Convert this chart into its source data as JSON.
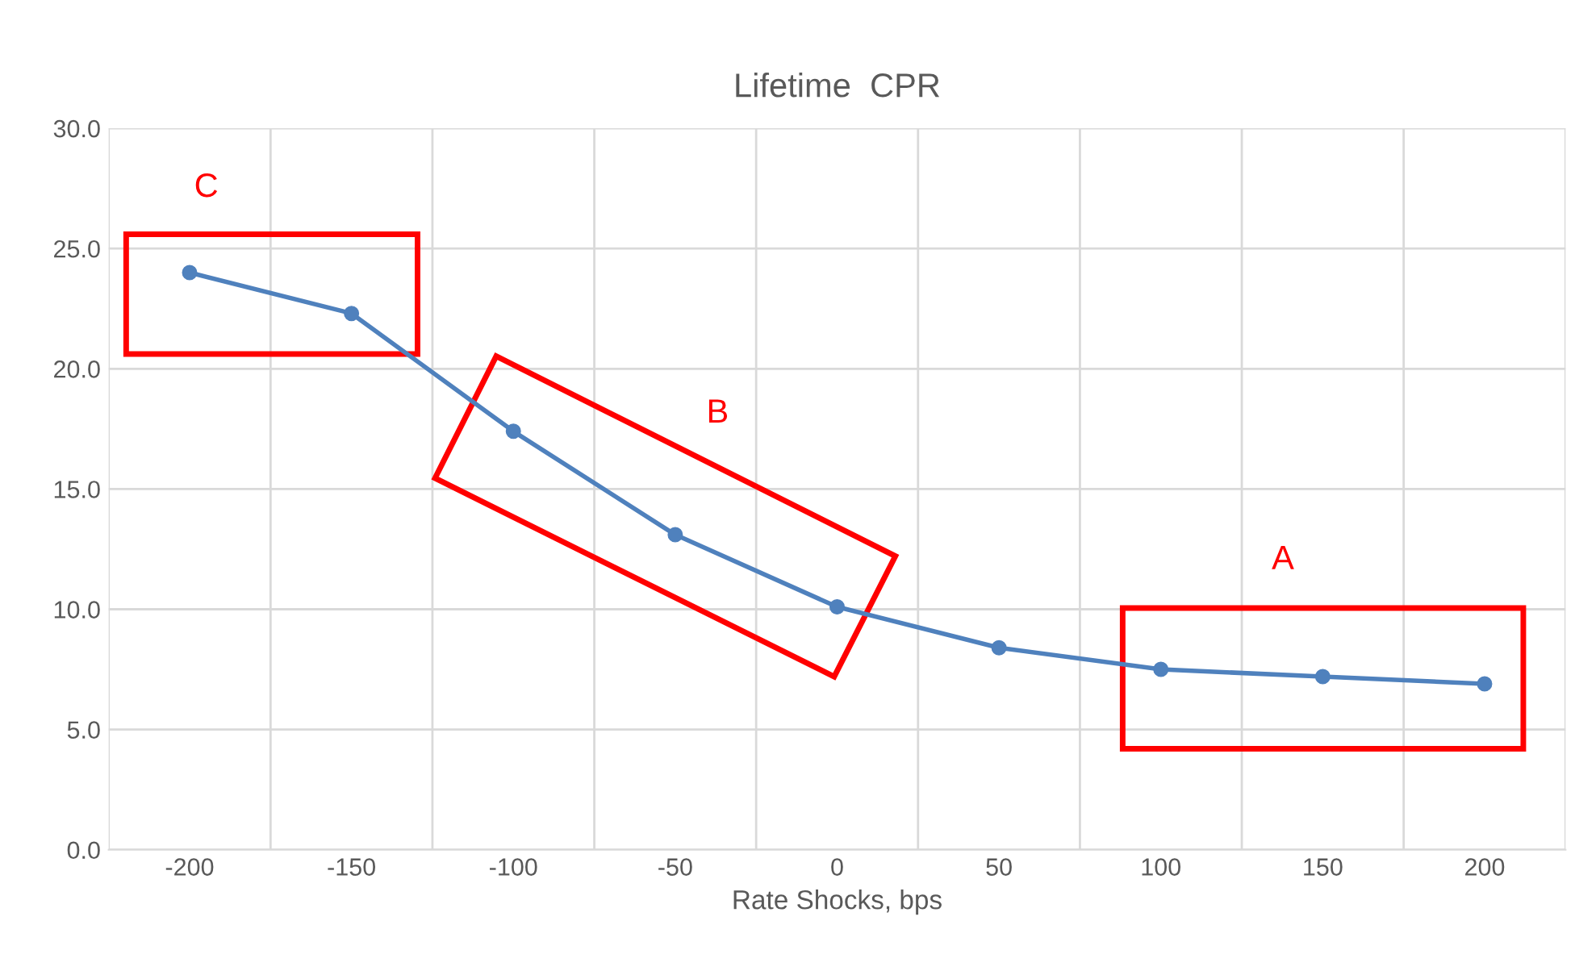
{
  "chart_data": {
    "type": "line",
    "title": "Lifetime  CPR",
    "xlabel": "Rate Shocks, bps",
    "categories": [
      "-200",
      "-150",
      "-100",
      "-50",
      "0",
      "50",
      "100",
      "150",
      "200"
    ],
    "series": [
      {
        "color": "#4f81bd",
        "values": [
          24.0,
          22.3,
          17.4,
          13.1,
          10.1,
          8.4,
          7.5,
          7.2,
          6.9
        ]
      }
    ],
    "ylim": [
      0,
      30
    ],
    "yticks": [
      {
        "value": 0,
        "label": "0.0"
      },
      {
        "value": 5,
        "label": "5.0"
      },
      {
        "value": 10,
        "label": "10.0"
      },
      {
        "value": 15,
        "label": "15.0"
      },
      {
        "value": 20,
        "label": "20.0"
      },
      {
        "value": 25,
        "label": "25.0"
      },
      {
        "value": 30,
        "label": "30.0"
      }
    ],
    "grid": true,
    "marker": "circle",
    "line_style": "solid",
    "annotations": [
      "C",
      "B",
      "A"
    ]
  }
}
